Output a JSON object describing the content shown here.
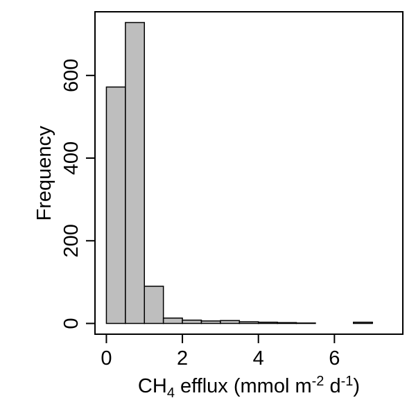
{
  "chart_data": {
    "type": "bar",
    "xlabel": {
      "prefix": "CH",
      "sub": "4",
      "middle": " efflux (mmol m",
      "sup1": "-2",
      "middle2": " d",
      "sup2": "-1",
      "suffix": ")"
    },
    "ylabel": "Frequency",
    "x_ticks": [
      0,
      2,
      4,
      6
    ],
    "y_ticks": [
      0,
      200,
      400,
      600
    ],
    "xlim": [
      -0.3,
      7.8
    ],
    "ylim": [
      -26,
      754
    ],
    "bin_width": 0.5,
    "bins": [
      {
        "x0": 0.0,
        "x1": 0.5,
        "count": 572
      },
      {
        "x0": 0.5,
        "x1": 1.0,
        "count": 728
      },
      {
        "x0": 1.0,
        "x1": 1.5,
        "count": 90
      },
      {
        "x0": 1.5,
        "x1": 2.0,
        "count": 13
      },
      {
        "x0": 2.0,
        "x1": 2.5,
        "count": 8
      },
      {
        "x0": 2.5,
        "x1": 3.0,
        "count": 6
      },
      {
        "x0": 3.0,
        "x1": 3.5,
        "count": 7
      },
      {
        "x0": 3.5,
        "x1": 4.0,
        "count": 4
      },
      {
        "x0": 4.0,
        "x1": 4.5,
        "count": 3
      },
      {
        "x0": 4.5,
        "x1": 5.0,
        "count": 2
      },
      {
        "x0": 5.0,
        "x1": 5.5,
        "count": 1
      },
      {
        "x0": 5.5,
        "x1": 6.0,
        "count": 0
      },
      {
        "x0": 6.0,
        "x1": 6.5,
        "count": 0
      },
      {
        "x0": 6.5,
        "x1": 7.0,
        "count": 3
      },
      {
        "x0": 7.0,
        "x1": 7.5,
        "count": 0
      }
    ],
    "bar_fill": "#bebebe",
    "bar_stroke": "#000000",
    "grid": false
  }
}
